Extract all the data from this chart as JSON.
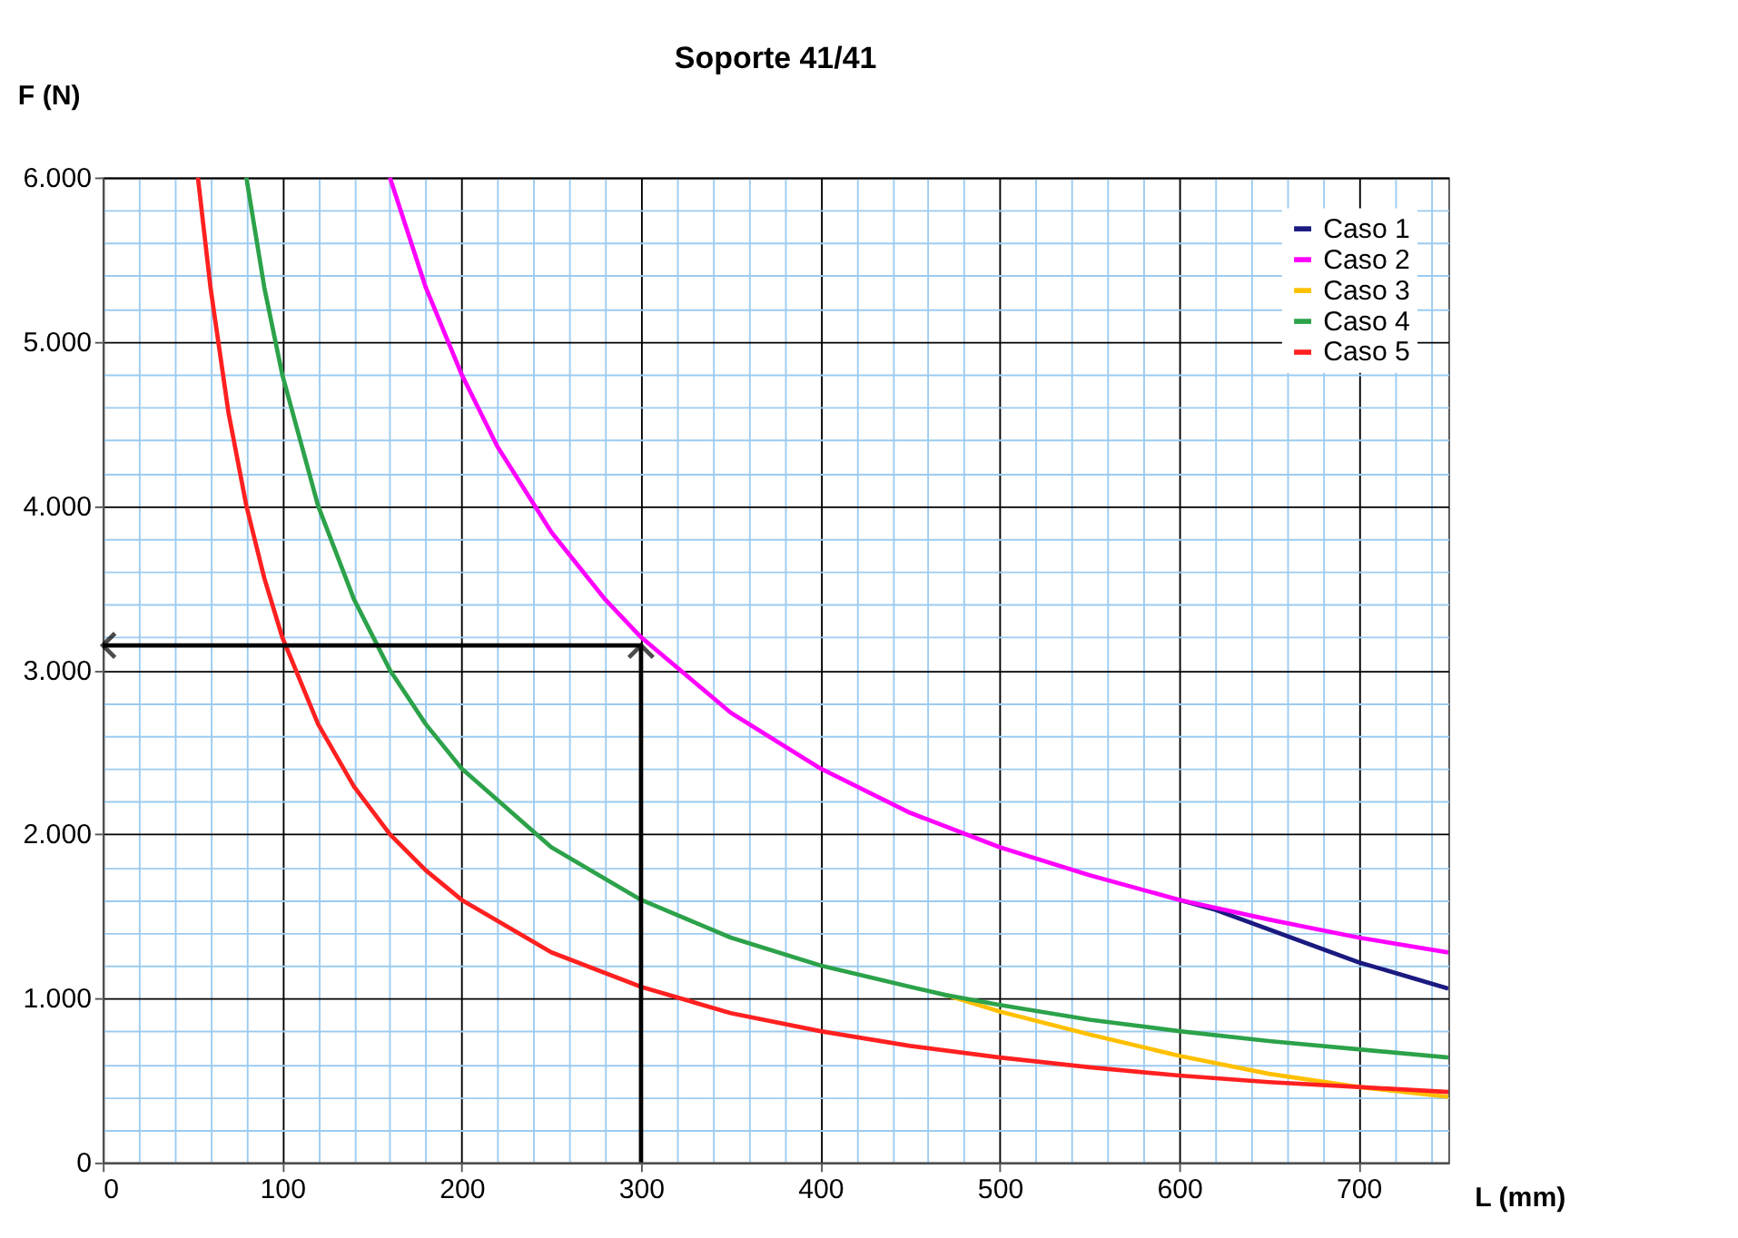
{
  "chart_data": {
    "type": "line",
    "title": "Soporte 41/41",
    "xlabel": "L (mm)",
    "ylabel": "F (N)",
    "xlim": [
      0,
      750
    ],
    "xticks": [
      0,
      {
        "value": 20,
        "label": null
      },
      {
        "value": 40,
        "label": null
      },
      {
        "value": 60,
        "label": null
      },
      {
        "value": 80,
        "label": null
      },
      100,
      {
        "value": 120,
        "label": null
      },
      {
        "value": 140,
        "label": null
      },
      {
        "value": 160,
        "label": null
      },
      {
        "value": 180,
        "label": null
      },
      200,
      {
        "value": 220,
        "label": null
      },
      {
        "value": 240,
        "label": null
      },
      {
        "value": 260,
        "label": null
      },
      {
        "value": 280,
        "label": null
      },
      300,
      {
        "value": 320,
        "label": null
      },
      {
        "value": 340,
        "label": null
      },
      {
        "value": 360,
        "label": null
      },
      {
        "value": 380,
        "label": null
      },
      400,
      {
        "value": 420,
        "label": null
      },
      {
        "value": 440,
        "label": null
      },
      {
        "value": 460,
        "label": null
      },
      {
        "value": 480,
        "label": null
      },
      500,
      {
        "value": 520,
        "label": null
      },
      {
        "value": 540,
        "label": null
      },
      {
        "value": 560,
        "label": null
      },
      {
        "value": 580,
        "label": null
      },
      600,
      {
        "value": 620,
        "label": null
      },
      {
        "value": 640,
        "label": null
      },
      {
        "value": 660,
        "label": null
      },
      {
        "value": 680,
        "label": null
      },
      700,
      {
        "value": 720,
        "label": null
      },
      {
        "value": 740,
        "label": null
      }
    ],
    "ylim": [
      0,
      6000
    ],
    "yticks": [
      0,
      {
        "value": 200,
        "label": null
      },
      {
        "value": 400,
        "label": null
      },
      {
        "value": 600,
        "label": null
      },
      {
        "value": 800,
        "label": null
      },
      {
        "value": 1000,
        "label": "1.000"
      },
      {
        "value": 1200,
        "label": null
      },
      {
        "value": 1400,
        "label": null
      },
      {
        "value": 1600,
        "label": null
      },
      {
        "value": 1800,
        "label": null
      },
      {
        "value": 2000,
        "label": "2.000"
      },
      {
        "value": 2200,
        "label": null
      },
      {
        "value": 2400,
        "label": null
      },
      {
        "value": 2600,
        "label": null
      },
      {
        "value": 2800,
        "label": null
      },
      {
        "value": 3000,
        "label": "3.000"
      },
      {
        "value": 3200,
        "label": null
      },
      {
        "value": 3400,
        "label": null
      },
      {
        "value": 3600,
        "label": null
      },
      {
        "value": 3800,
        "label": null
      },
      {
        "value": 4000,
        "label": "4.000"
      },
      {
        "value": 4200,
        "label": null
      },
      {
        "value": 4400,
        "label": null
      },
      {
        "value": 4600,
        "label": null
      },
      {
        "value": 4800,
        "label": null
      },
      {
        "value": 5000,
        "label": "5.000"
      },
      {
        "value": 5200,
        "label": null
      },
      {
        "value": 5400,
        "label": null
      },
      {
        "value": 5600,
        "label": null
      },
      {
        "value": 5800,
        "label": null
      },
      {
        "value": 6000,
        "label": "6.000"
      }
    ],
    "grid": true,
    "legend": "top right",
    "marker": "none",
    "line_style": "solid",
    "series": [
      {
        "name": "Caso 1",
        "color": "#1a1a80",
        "x": [
          600,
          620,
          650,
          700,
          750
        ],
        "values": [
          1600,
          1540,
          1420,
          1220,
          1060
        ]
      },
      {
        "name": "Caso 2",
        "color": "#ff00ff",
        "x": [
          160,
          180,
          200,
          220,
          250,
          280,
          300,
          350,
          400,
          450,
          500,
          550,
          600,
          650,
          700,
          750
        ],
        "values": [
          6000,
          5330,
          4800,
          4360,
          3840,
          3430,
          3200,
          2740,
          2400,
          2130,
          1920,
          1750,
          1600,
          1480,
          1370,
          1280
        ]
      },
      {
        "name": "Caso 3",
        "color": "#ffc000",
        "x": [
          470,
          500,
          550,
          600,
          650,
          700,
          750
        ],
        "values": [
          1020,
          920,
          780,
          650,
          540,
          460,
          400
        ]
      },
      {
        "name": "Caso 4",
        "color": "#2ca24a",
        "x": [
          80,
          90,
          100,
          120,
          140,
          160,
          180,
          200,
          250,
          300,
          350,
          400,
          450,
          470,
          500,
          550,
          600,
          650,
          700,
          750
        ],
        "values": [
          6000,
          5330,
          4800,
          4000,
          3430,
          3000,
          2670,
          2400,
          1920,
          1600,
          1370,
          1200,
          1070,
          1020,
          960,
          870,
          800,
          740,
          690,
          640
        ]
      },
      {
        "name": "Caso 5",
        "color": "#ff2020",
        "x": [
          53,
          60,
          70,
          80,
          90,
          100,
          120,
          140,
          160,
          180,
          200,
          250,
          300,
          350,
          400,
          450,
          500,
          550,
          600,
          650,
          700,
          750
        ],
        "values": [
          6000,
          5330,
          4570,
          4000,
          3560,
          3200,
          2670,
          2290,
          2000,
          1780,
          1600,
          1280,
          1070,
          910,
          800,
          710,
          640,
          580,
          530,
          490,
          460,
          430
        ]
      },
      {
        "color": "#000000",
        "x": [
          0,
          300,
          300
        ],
        "values": [
          3150,
          3150,
          0
        ]
      }
    ]
  }
}
